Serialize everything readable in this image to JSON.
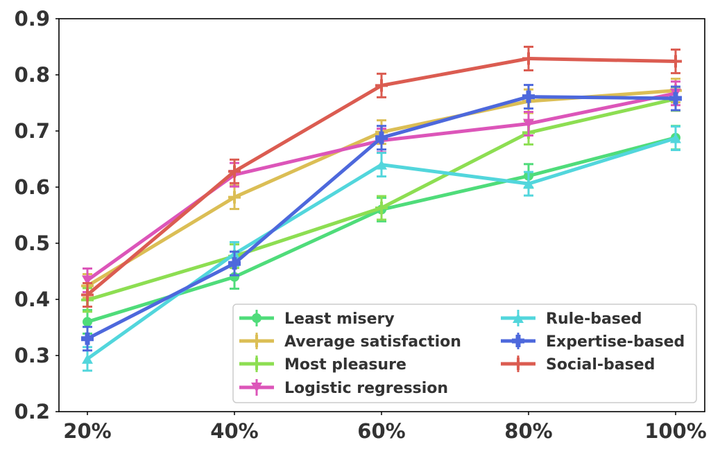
{
  "chart_data": {
    "type": "line",
    "title": "",
    "xlabel": "",
    "ylabel": "",
    "categories": [
      "20%",
      "40%",
      "60%",
      "80%",
      "100%"
    ],
    "ylim": [
      0.2,
      0.9
    ],
    "yticks": [
      "0.2",
      "0.3",
      "0.4",
      "0.5",
      "0.6",
      "0.7",
      "0.8",
      "0.9"
    ],
    "legend_position": "bottom-right",
    "series": [
      {
        "name": "Least misery",
        "color": "#4fdc7a",
        "marker": "circle",
        "values": [
          0.36,
          0.44,
          0.56,
          0.62,
          0.688
        ]
      },
      {
        "name": "Average satisfaction",
        "color": "#dbbe55",
        "marker": "plus",
        "values": [
          0.424,
          0.582,
          0.698,
          0.753,
          0.772
        ]
      },
      {
        "name": "Most pleasure",
        "color": "#8dde52",
        "marker": "plus",
        "values": [
          0.399,
          0.477,
          0.563,
          0.697,
          0.757
        ]
      },
      {
        "name": "Logistic regression",
        "color": "#dc55b9",
        "marker": "triangle-down",
        "values": [
          0.434,
          0.622,
          0.683,
          0.713,
          0.767
        ]
      },
      {
        "name": "Rule-based",
        "color": "#52d6dc",
        "marker": "triangle-up",
        "values": [
          0.294,
          0.481,
          0.64,
          0.606,
          0.687
        ]
      },
      {
        "name": "Expertise-based",
        "color": "#4d68dc",
        "marker": "plus-thick",
        "values": [
          0.33,
          0.464,
          0.688,
          0.761,
          0.758
        ]
      },
      {
        "name": "Social-based",
        "color": "#db5c51",
        "marker": "plus",
        "values": [
          0.408,
          0.628,
          0.781,
          0.829,
          0.824
        ]
      }
    ]
  }
}
